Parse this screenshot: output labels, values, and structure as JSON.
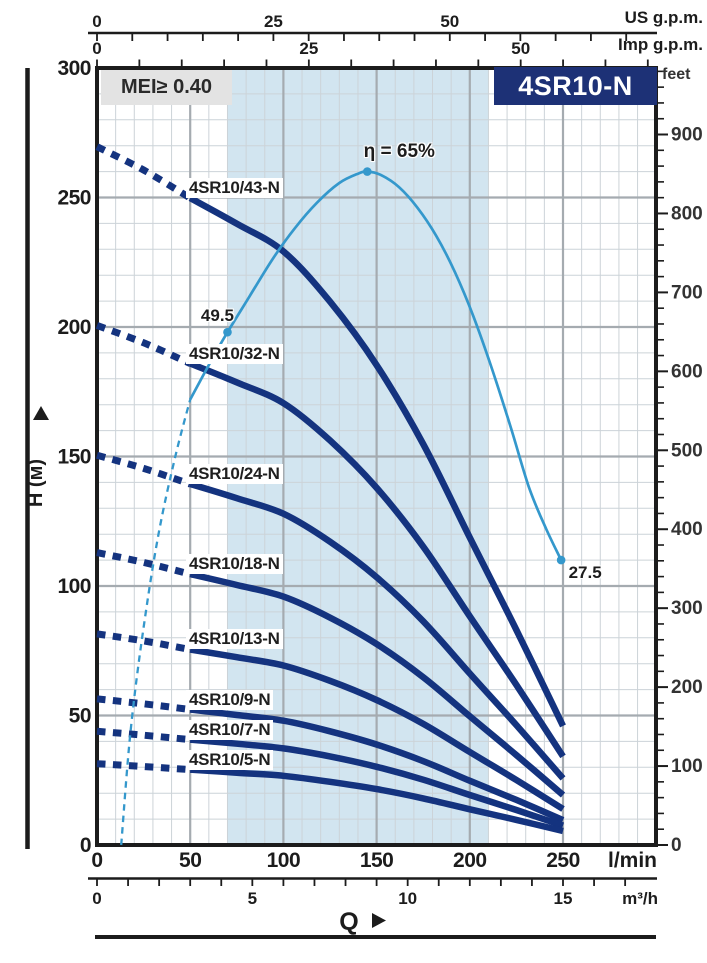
{
  "title": "4SR10-N",
  "mei_badge": "MEI≥ 0.40",
  "colors": {
    "pump_curve": "#14337f",
    "efficiency_curve": "#3498cc",
    "duty_shade": "#d2e5f0",
    "grid_minor": "#ccd3d8",
    "grid_major": "#a5abb0",
    "ink": "#1c1c1c",
    "title_bg": "#1d3176",
    "mei_bg": "#e3e3e3"
  },
  "chart_data": {
    "type": "line",
    "title": "4SR10-N",
    "xlabel": "Q",
    "ylabel": "H (м)",
    "x_range_lmin": [
      0,
      300
    ],
    "y_range_m": [
      0,
      300
    ],
    "grid": {
      "minor_step": 10,
      "major_step": 50
    },
    "duty_range_lmin": [
      70,
      210
    ],
    "axes": {
      "us_gpm": {
        "unit": "US g.p.m.",
        "labels": [
          0,
          25,
          50
        ],
        "tick_step": 5,
        "max_tick": 75,
        "lmin_per_unit": 3.7854
      },
      "imp_gpm": {
        "unit": "Imp g.p.m.",
        "labels": [
          0,
          25,
          50
        ],
        "tick_step": 5,
        "max_tick": 65,
        "lmin_per_unit": 4.5461
      },
      "feet": {
        "unit": "feet",
        "labels": [
          900,
          800,
          700,
          600,
          500,
          400,
          300,
          200,
          100,
          0
        ],
        "tick_step": 20,
        "max_tick": 980,
        "m_per_ft": 0.3048
      },
      "lmin": {
        "unit": "l/min",
        "labels": [
          0,
          50,
          100,
          150,
          200,
          250
        ]
      },
      "m3h": {
        "unit": "m³/h",
        "labels": [
          0,
          5,
          10,
          15
        ],
        "tick_step": 1,
        "max_tick": 17,
        "lmin_per_unit": 16.6667
      },
      "head_m": {
        "unit": "H (м)",
        "labels": [
          300,
          250,
          200,
          150,
          100,
          50,
          0
        ]
      },
      "flow": {
        "unit": "Q"
      }
    },
    "q_lmin": [
      0,
      25,
      50,
      75,
      100,
      125,
      150,
      175,
      200,
      225,
      250
    ],
    "dashed_until_q": 50,
    "series": [
      {
        "name": "4SR10/43-N",
        "stages": 43,
        "head_m": [
          269.6,
          260.6,
          249.8,
          239.9,
          229.2,
          209.8,
          185.3,
          154.8,
          118.7,
          83.0,
          46.0
        ]
      },
      {
        "name": "4SR10/32-N",
        "stages": 32,
        "head_m": [
          200.6,
          193.9,
          185.9,
          178.6,
          170.6,
          156.2,
          137.9,
          115.2,
          88.3,
          61.8,
          34.2
        ]
      },
      {
        "name": "4SR10/24-N",
        "stages": 24,
        "head_m": [
          150.5,
          145.4,
          139.4,
          133.9,
          127.9,
          117.1,
          103.4,
          86.4,
          66.2,
          46.3,
          25.7
        ]
      },
      {
        "name": "4SR10/18-N",
        "stages": 18,
        "head_m": [
          112.9,
          109.1,
          104.6,
          100.4,
          95.9,
          87.8,
          77.6,
          64.8,
          49.7,
          34.7,
          19.3
        ]
      },
      {
        "name": "4SR10/13-N",
        "stages": 13,
        "head_m": [
          81.5,
          78.8,
          75.5,
          72.5,
          69.3,
          63.4,
          56.0,
          46.8,
          35.9,
          25.1,
          13.9
        ]
      },
      {
        "name": "4SR10/9-N",
        "stages": 9,
        "head_m": [
          56.4,
          54.5,
          52.3,
          50.2,
          48.0,
          43.9,
          38.8,
          32.4,
          24.8,
          17.4,
          9.6
        ]
      },
      {
        "name": "4SR10/7-N",
        "stages": 7,
        "head_m": [
          43.9,
          42.4,
          40.7,
          39.1,
          37.3,
          34.2,
          30.2,
          25.2,
          19.3,
          13.5,
          7.5
        ]
      },
      {
        "name": "4SR10/5-N",
        "stages": 5,
        "head_m": [
          31.4,
          30.3,
          29.1,
          27.9,
          26.7,
          24.4,
          21.6,
          18.0,
          13.8,
          9.7,
          5.4
        ]
      }
    ],
    "efficiency_curve": {
      "eta_to_m_scale": 4,
      "dashed_q_eta": [
        [
          13,
          0
        ],
        [
          18,
          11
        ],
        [
          25,
          21
        ],
        [
          33,
          30
        ],
        [
          42,
          37.5
        ],
        [
          50,
          43
        ]
      ],
      "solid_q_eta": [
        [
          50,
          43
        ],
        [
          62,
          47
        ],
        [
          70,
          49.5
        ],
        [
          82,
          53
        ],
        [
          94,
          56.5
        ],
        [
          106,
          59.5
        ],
        [
          118,
          62
        ],
        [
          130,
          63.9
        ],
        [
          140,
          64.8
        ],
        [
          145,
          65
        ],
        [
          152,
          64.7
        ],
        [
          162,
          63.5
        ],
        [
          172,
          61.5
        ],
        [
          182,
          58.8
        ],
        [
          192,
          55.3
        ],
        [
          202,
          51
        ],
        [
          212,
          45.9
        ],
        [
          222,
          40.3
        ],
        [
          232,
          34.4
        ],
        [
          241,
          30.5
        ],
        [
          249,
          27.5
        ]
      ],
      "markers": [
        {
          "q": 70,
          "eta": 49.5,
          "label": "49.5"
        },
        {
          "q": 145,
          "eta": 65,
          "label": "η = 65%"
        },
        {
          "q": 249,
          "eta": 27.5,
          "label": "27.5"
        }
      ]
    }
  }
}
